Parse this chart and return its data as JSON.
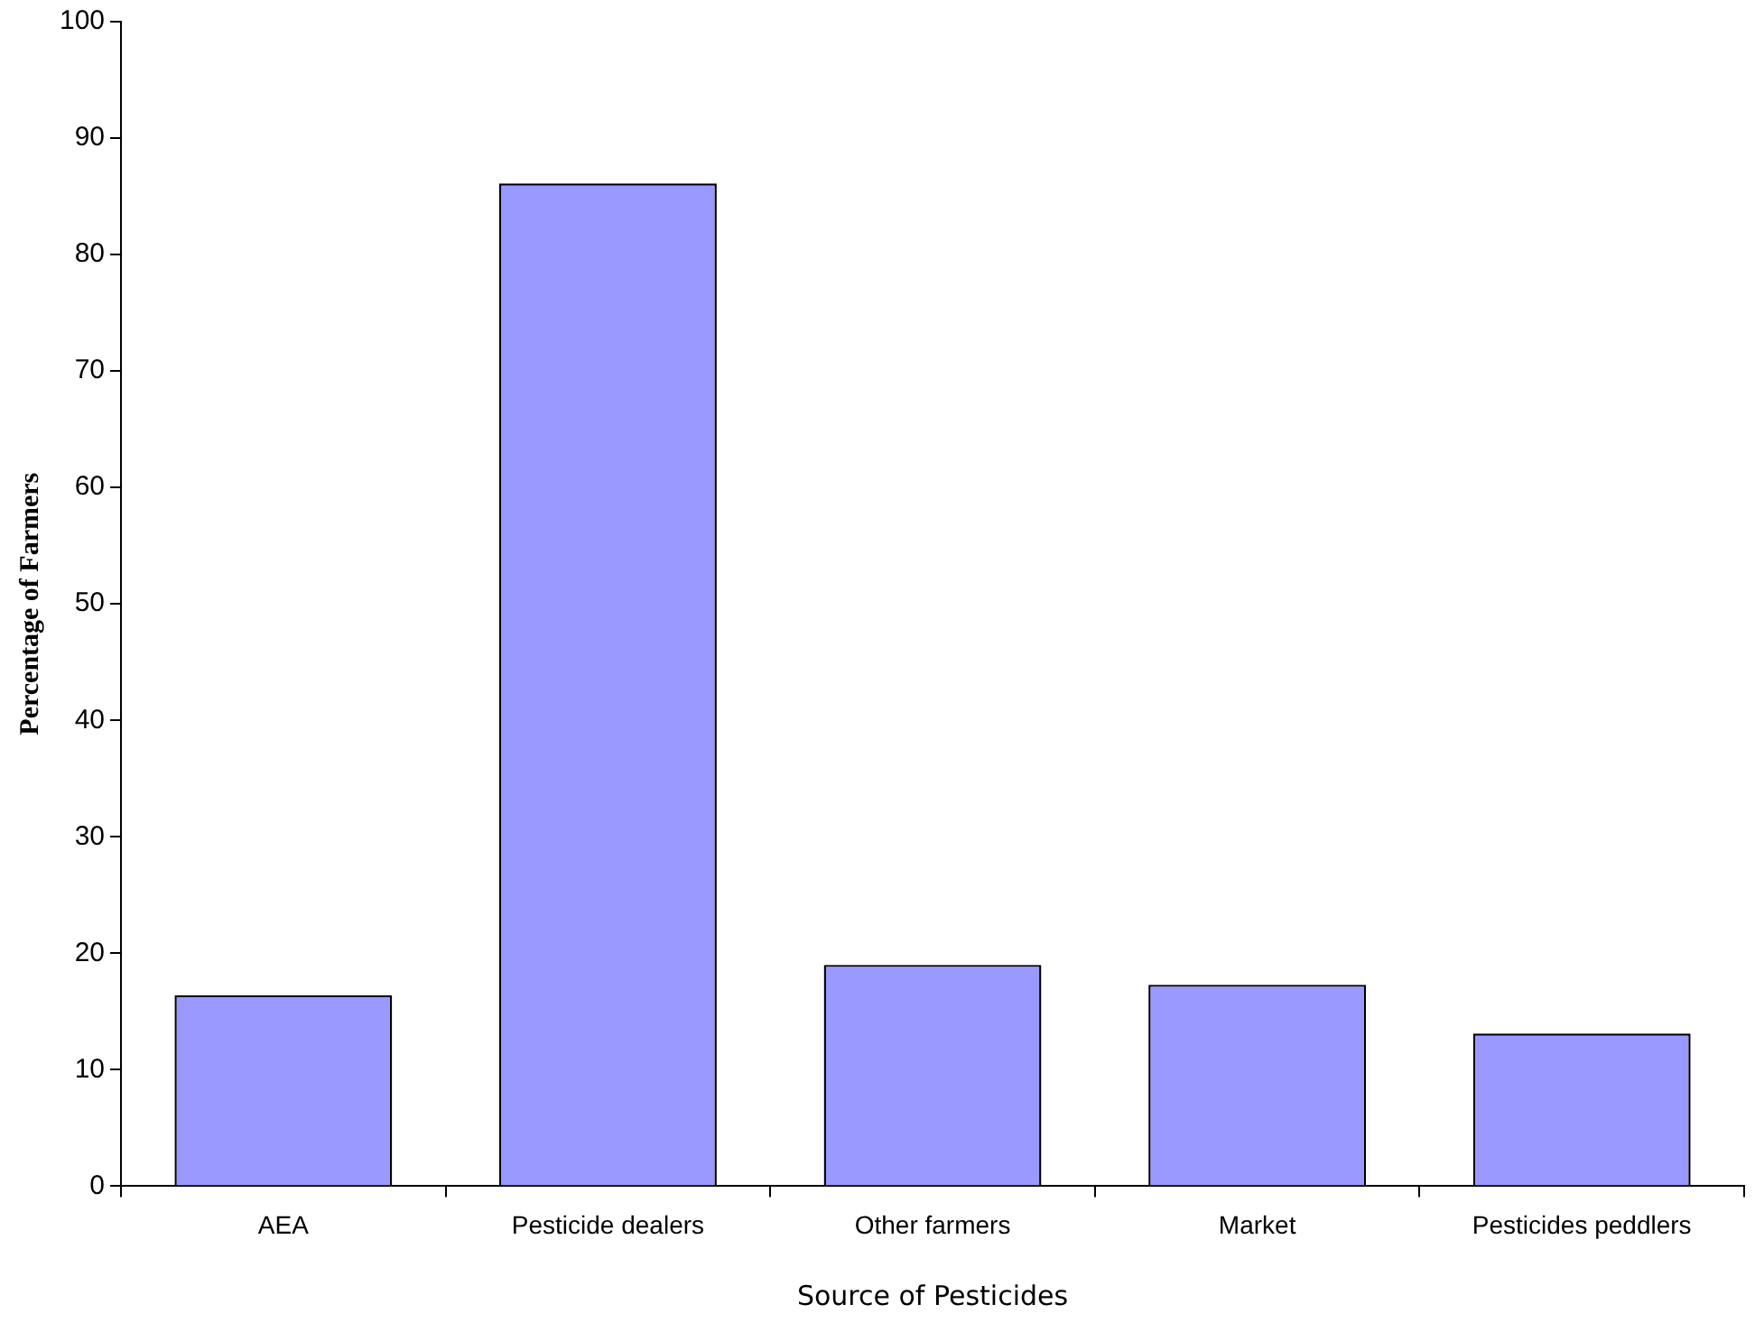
{
  "chart_data": {
    "type": "bar",
    "xlabel": "Source of Pesticides",
    "ylabel": "Percentage of Farmers",
    "categories": [
      "AEA",
      "Pesticide dealers",
      "Other farmers",
      "Market",
      "Pesticides peddlers"
    ],
    "values": [
      16.4,
      86.1,
      19.0,
      17.3,
      13.1
    ],
    "color": "#9999ff",
    "ylim": [
      0,
      100
    ],
    "yticks": [
      0,
      10,
      20,
      30,
      40,
      50,
      60,
      70,
      80,
      90,
      100
    ],
    "grid": false,
    "legend": false
  }
}
